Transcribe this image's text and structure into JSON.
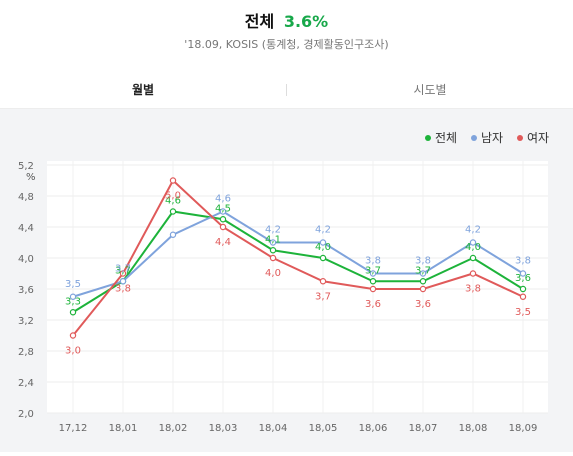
{
  "header": {
    "title": "전체",
    "rate": "3.6%",
    "subtitle": "'18.09, KOSIS (통계청, 경제활동인구조사)"
  },
  "tabs": [
    {
      "label": "월별",
      "active": true
    },
    {
      "label": "시도별",
      "active": false
    }
  ],
  "colors": {
    "total": "#1db33a",
    "male": "#7fa3dc",
    "female": "#e05a5a",
    "rate_text": "#18a84a"
  },
  "chart_data": {
    "type": "line",
    "categories": [
      "17.12",
      "18.01",
      "18.02",
      "18.03",
      "18.04",
      "18.05",
      "18.06",
      "18.07",
      "18.08",
      "18.09"
    ],
    "series": [
      {
        "name": "전체",
        "values": [
          3.3,
          3.7,
          4.6,
          4.5,
          4.1,
          4.0,
          3.7,
          3.7,
          4.0,
          3.6
        ],
        "labels": [
          "3.3",
          "3.7",
          "4.6",
          "4.5",
          "4.1",
          "4.0",
          "3.7",
          "3.7",
          "4.0",
          "3.6"
        ]
      },
      {
        "name": "남자",
        "values": [
          3.5,
          3.7,
          4.3,
          4.6,
          4.2,
          4.2,
          3.8,
          3.8,
          4.2,
          3.8
        ],
        "labels": [
          "3.5",
          "3.7",
          "",
          "4.6",
          "4.2",
          "4.2",
          "3.8",
          "3.8",
          "4.2",
          "3.8"
        ]
      },
      {
        "name": "여자",
        "values": [
          3.0,
          3.8,
          5.0,
          4.4,
          4.0,
          3.7,
          3.6,
          3.6,
          3.8,
          3.5
        ],
        "labels": [
          "3.0",
          "3.8",
          "5.0",
          "4.4",
          "4.0",
          "3.7",
          "3.6",
          "3.6",
          "3.8",
          "3.5"
        ]
      }
    ],
    "y_ticks": [
      "2.0",
      "2.4",
      "2.8",
      "3.2",
      "3.6",
      "4.0",
      "4.4",
      "4.8",
      "5.2"
    ],
    "yunit": "%",
    "ylim": [
      2.0,
      5.2
    ],
    "grid": true,
    "legend": "top-right"
  }
}
